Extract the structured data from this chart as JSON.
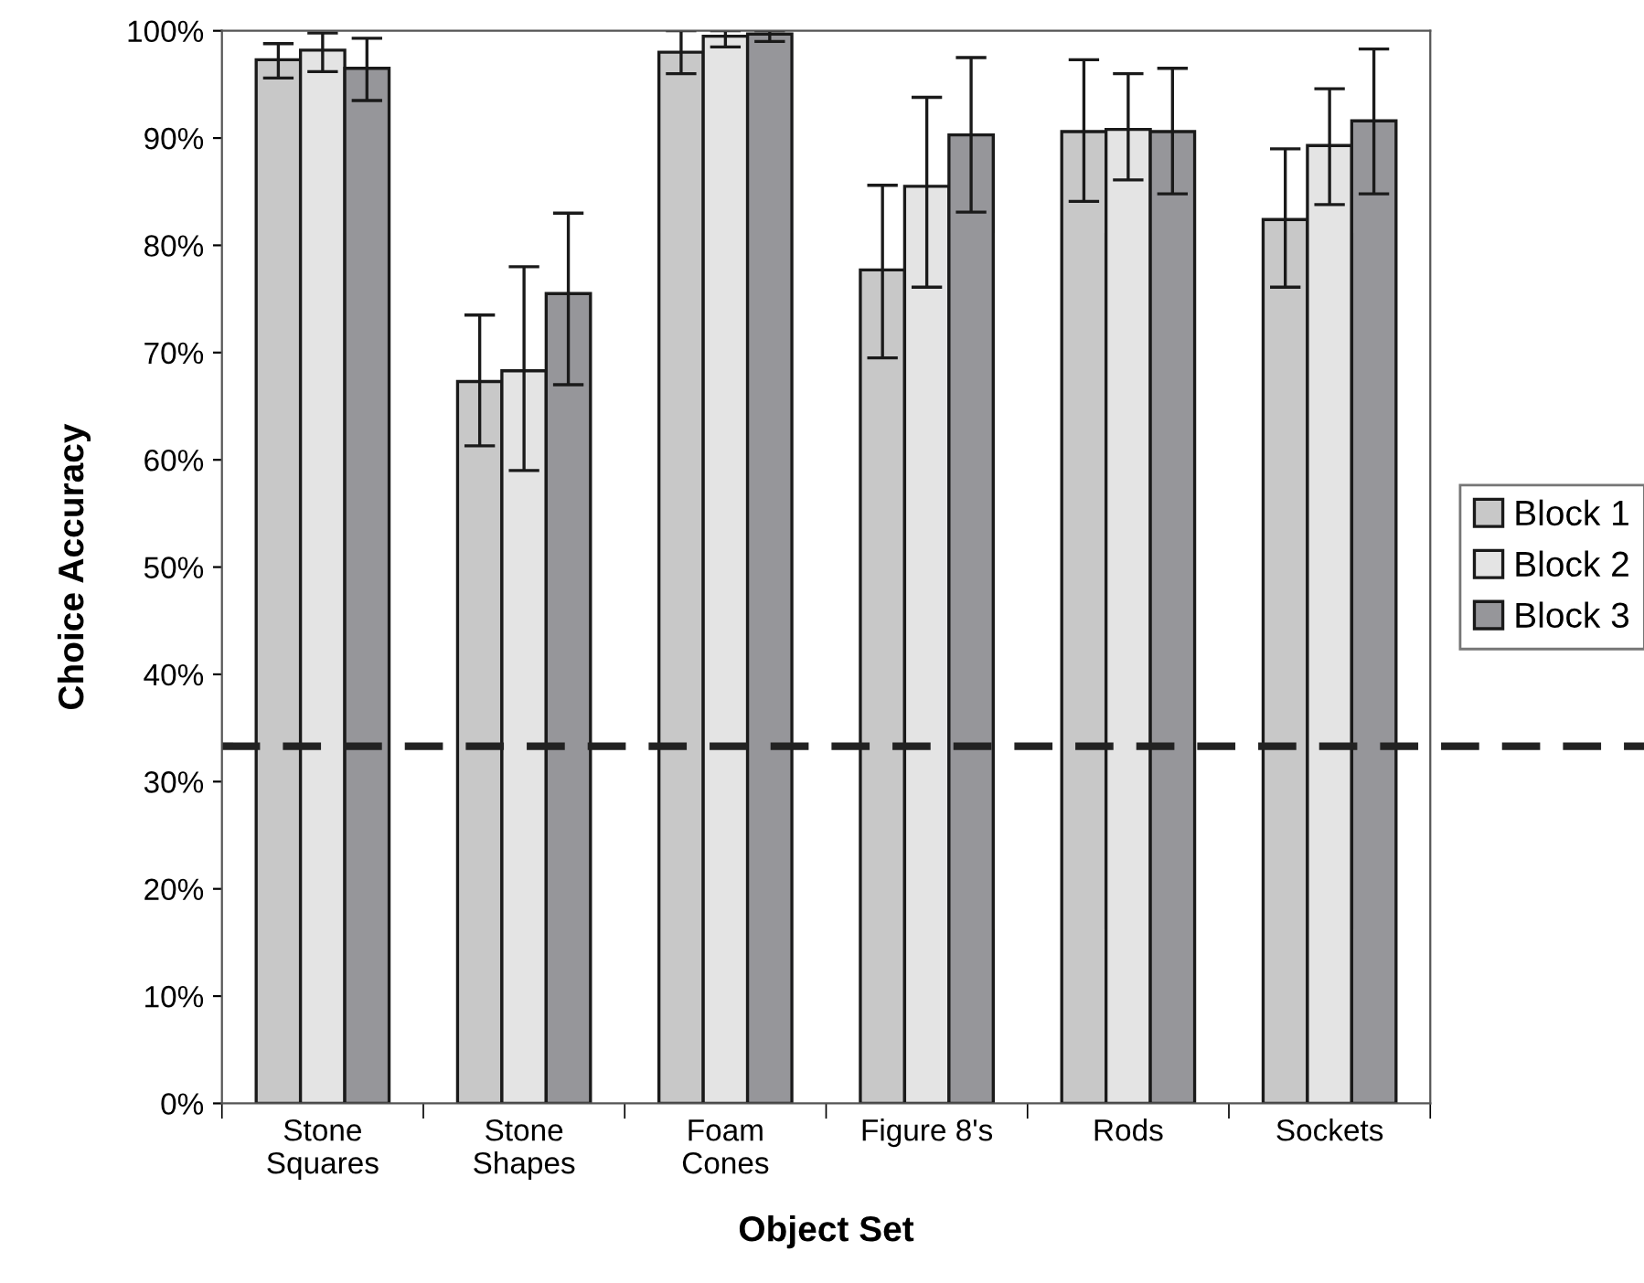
{
  "chart_data": {
    "type": "bar",
    "xlabel": "Object Set",
    "ylabel": "Choice Accuracy",
    "categories": [
      "Stone\nSquares",
      "Stone\nShapes",
      "Foam\nCones",
      "Figure 8's",
      "Rods",
      "Sockets"
    ],
    "series": [
      {
        "name": "Block 1",
        "color": "#c8c8c8",
        "values": [
          97.3,
          67.3,
          98,
          77.7,
          90.6,
          82.4
        ],
        "errors": [
          [
            95.6,
            98.8
          ],
          [
            61.3,
            73.5
          ],
          [
            96,
            100
          ],
          [
            69.5,
            85.6
          ],
          [
            84.1,
            97.3
          ],
          [
            76.1,
            89
          ]
        ]
      },
      {
        "name": "Block 2",
        "color": "#e4e4e4",
        "values": [
          98.2,
          68.3,
          99.5,
          85.5,
          90.8,
          89.3
        ],
        "errors": [
          [
            96.2,
            99.8
          ],
          [
            59,
            78
          ],
          [
            98.5,
            100
          ],
          [
            76.1,
            93.8
          ],
          [
            86.1,
            96
          ],
          [
            83.8,
            94.6
          ]
        ]
      },
      {
        "name": "Block 3",
        "color": "#96969a",
        "values": [
          96.5,
          75.5,
          99.7,
          90.3,
          90.6,
          91.6
        ],
        "errors": [
          [
            93.5,
            99.3
          ],
          [
            67,
            83
          ],
          [
            99,
            100
          ],
          [
            83.1,
            97.5
          ],
          [
            84.8,
            96.5
          ],
          [
            84.8,
            98.3
          ]
        ]
      }
    ],
    "ylim": [
      0,
      100
    ],
    "yticks": [
      {
        "value": 0,
        "label": "0%"
      },
      {
        "value": 10,
        "label": "10%"
      },
      {
        "value": 20,
        "label": "20%"
      },
      {
        "value": 30,
        "label": "30%"
      },
      {
        "value": 40,
        "label": "40%"
      },
      {
        "value": 50,
        "label": "50%"
      },
      {
        "value": 60,
        "label": "60%"
      },
      {
        "value": 70,
        "label": "70%"
      },
      {
        "value": 80,
        "label": "80%"
      },
      {
        "value": 90,
        "label": "90%"
      },
      {
        "value": 100,
        "label": "100%"
      }
    ],
    "ref_lines": [
      {
        "axis": "y",
        "value": 33.3,
        "color": "#222222",
        "line_style": "dashed"
      }
    ],
    "grid": false,
    "legend": "right"
  }
}
